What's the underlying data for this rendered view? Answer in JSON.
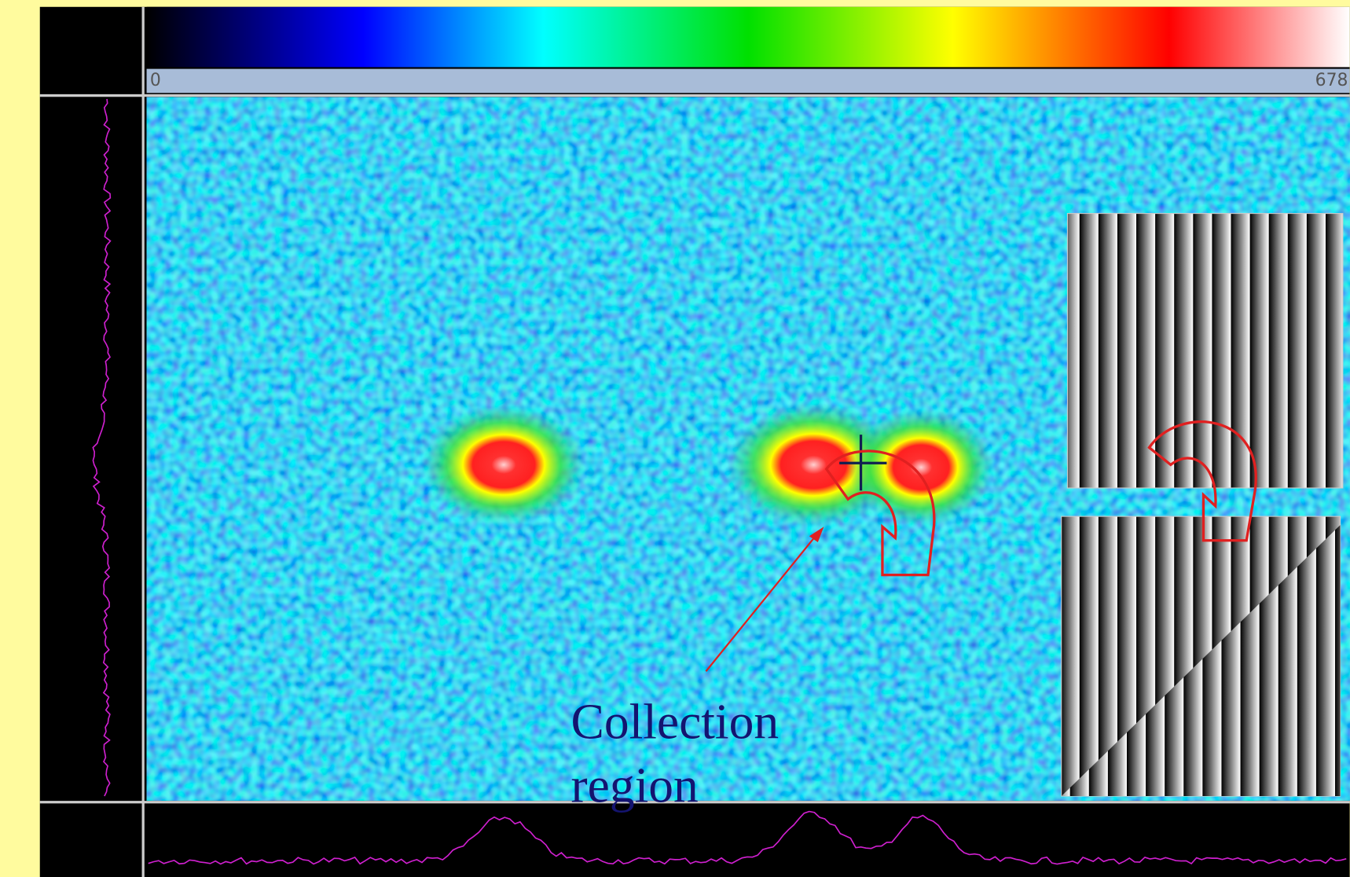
{
  "colorbar": {
    "min_label": "0",
    "max_label": "678"
  },
  "annotation": {
    "lines": [
      "Collection",
      "region"
    ]
  }
}
